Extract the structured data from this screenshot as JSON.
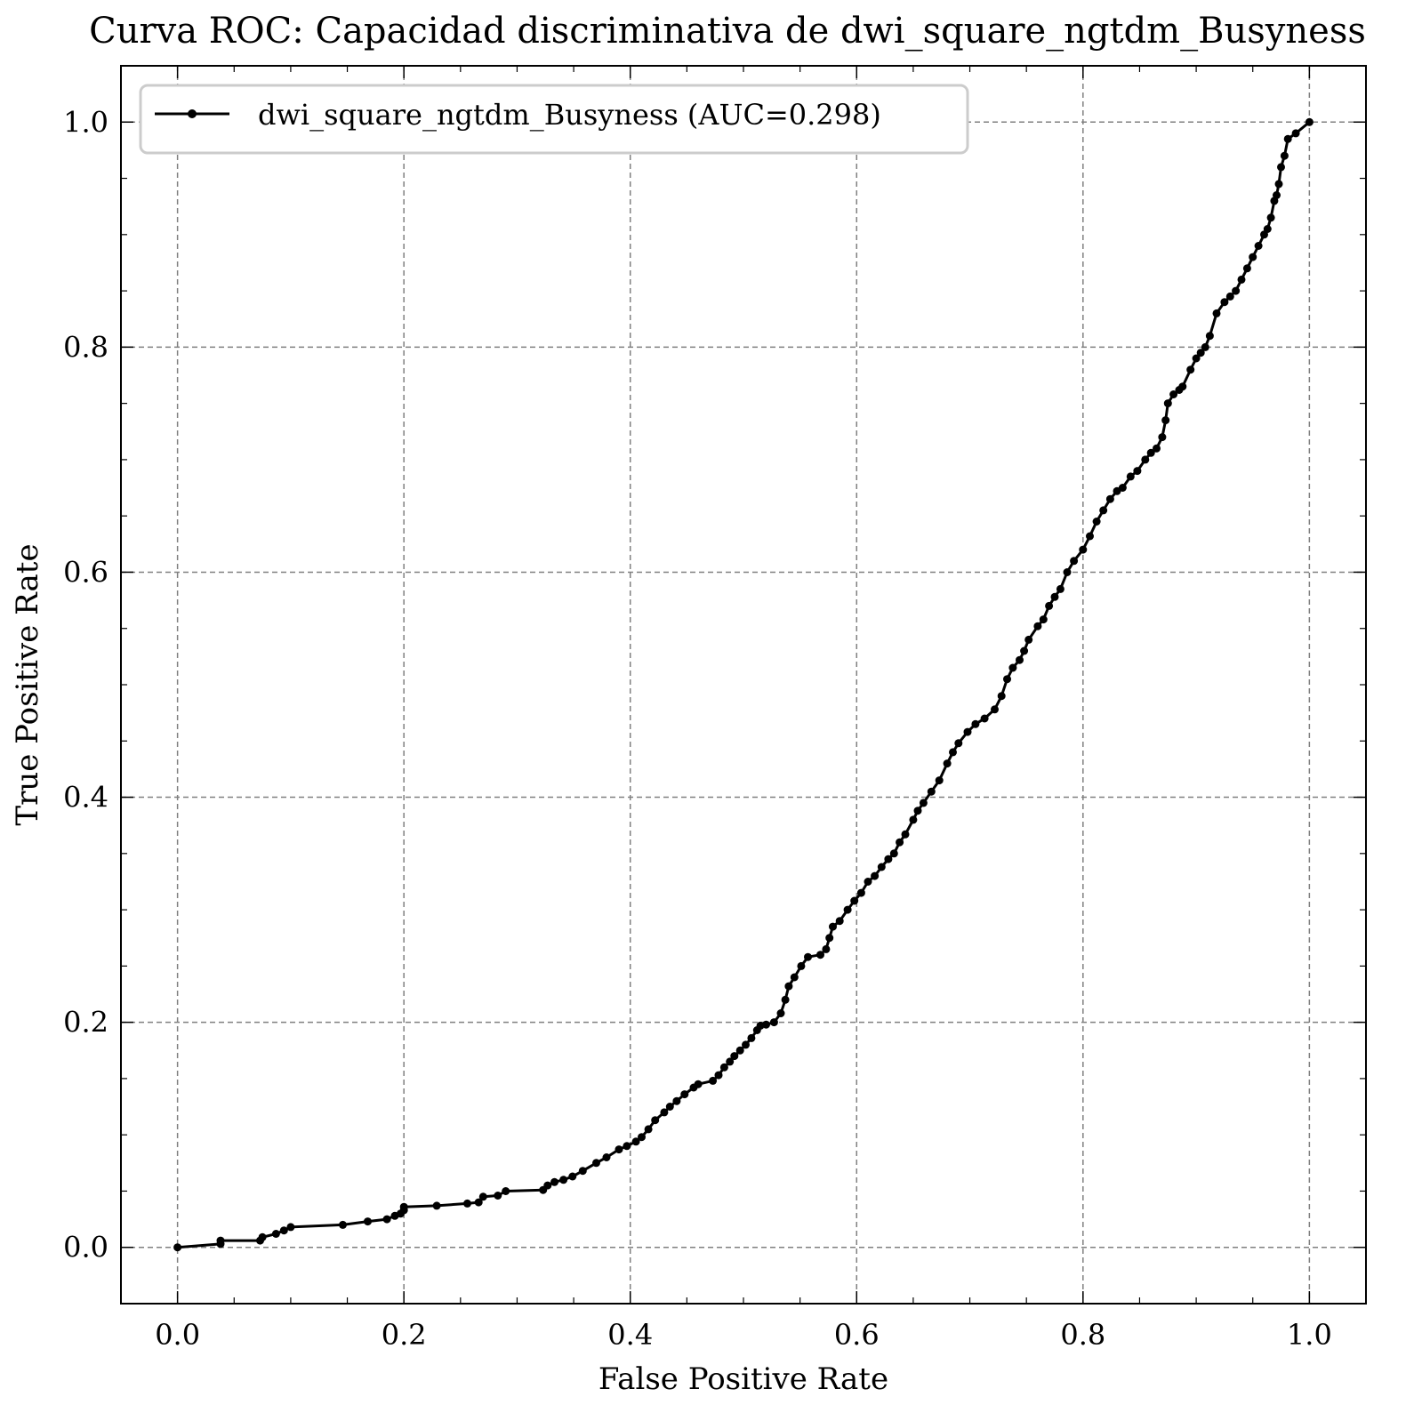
{
  "chart_data": {
    "type": "line",
    "title": "Curva ROC: Capacidad discriminativa de dwi_square_ngtdm_Busyness",
    "xlabel": "False Positive Rate",
    "ylabel": "True Positive Rate",
    "xlim": [
      -0.05,
      1.05
    ],
    "ylim": [
      -0.05,
      1.05
    ],
    "xticks": [
      "0.0",
      "0.2",
      "0.4",
      "0.6",
      "0.8",
      "1.0"
    ],
    "yticks": [
      "0.0",
      "0.2",
      "0.4",
      "0.6",
      "0.8",
      "1.0"
    ],
    "grid": true,
    "legend_position": "top-left",
    "colors": {
      "line": "#000000",
      "grid": "#808080",
      "background": "#ffffff"
    },
    "series": [
      {
        "name": "dwi_square_ngtdm_Busyness (AUC=0.298)",
        "x": [
          0.0,
          0.038,
          0.038,
          0.073,
          0.075,
          0.087,
          0.094,
          0.1,
          0.146,
          0.168,
          0.185,
          0.192,
          0.197,
          0.2,
          0.2,
          0.229,
          0.256,
          0.266,
          0.27,
          0.283,
          0.29,
          0.323,
          0.327,
          0.333,
          0.341,
          0.349,
          0.358,
          0.37,
          0.379,
          0.39,
          0.397,
          0.405,
          0.41,
          0.416,
          0.422,
          0.43,
          0.435,
          0.441,
          0.448,
          0.456,
          0.46,
          0.473,
          0.478,
          0.483,
          0.488,
          0.492,
          0.497,
          0.502,
          0.507,
          0.512,
          0.515,
          0.52,
          0.527,
          0.533,
          0.537,
          0.54,
          0.545,
          0.551,
          0.557,
          0.568,
          0.573,
          0.576,
          0.579,
          0.585,
          0.592,
          0.598,
          0.604,
          0.61,
          0.616,
          0.622,
          0.628,
          0.633,
          0.638,
          0.643,
          0.65,
          0.654,
          0.659,
          0.666,
          0.673,
          0.68,
          0.685,
          0.69,
          0.698,
          0.705,
          0.713,
          0.722,
          0.728,
          0.733,
          0.738,
          0.744,
          0.748,
          0.752,
          0.76,
          0.765,
          0.77,
          0.775,
          0.78,
          0.786,
          0.792,
          0.8,
          0.806,
          0.812,
          0.818,
          0.824,
          0.83,
          0.835,
          0.842,
          0.848,
          0.855,
          0.86,
          0.865,
          0.87,
          0.873,
          0.875,
          0.88,
          0.885,
          0.888,
          0.895,
          0.9,
          0.904,
          0.908,
          0.912,
          0.918,
          0.925,
          0.93,
          0.935,
          0.94,
          0.945,
          0.95,
          0.955,
          0.96,
          0.963,
          0.966,
          0.969,
          0.971,
          0.973,
          0.975,
          0.978,
          0.981,
          0.988,
          1.0
        ],
        "y": [
          0.0,
          0.003,
          0.006,
          0.006,
          0.009,
          0.012,
          0.015,
          0.018,
          0.02,
          0.023,
          0.025,
          0.028,
          0.03,
          0.033,
          0.036,
          0.037,
          0.039,
          0.04,
          0.045,
          0.046,
          0.05,
          0.051,
          0.055,
          0.058,
          0.06,
          0.063,
          0.068,
          0.075,
          0.08,
          0.087,
          0.09,
          0.094,
          0.098,
          0.105,
          0.113,
          0.12,
          0.125,
          0.13,
          0.136,
          0.142,
          0.145,
          0.148,
          0.153,
          0.16,
          0.165,
          0.17,
          0.175,
          0.18,
          0.186,
          0.193,
          0.197,
          0.198,
          0.2,
          0.208,
          0.22,
          0.232,
          0.24,
          0.25,
          0.258,
          0.26,
          0.265,
          0.275,
          0.285,
          0.29,
          0.3,
          0.308,
          0.315,
          0.325,
          0.33,
          0.338,
          0.345,
          0.35,
          0.36,
          0.367,
          0.38,
          0.388,
          0.395,
          0.405,
          0.415,
          0.43,
          0.44,
          0.448,
          0.458,
          0.465,
          0.47,
          0.478,
          0.49,
          0.505,
          0.515,
          0.522,
          0.53,
          0.54,
          0.552,
          0.558,
          0.57,
          0.578,
          0.585,
          0.6,
          0.61,
          0.62,
          0.632,
          0.645,
          0.655,
          0.665,
          0.672,
          0.675,
          0.685,
          0.69,
          0.7,
          0.706,
          0.71,
          0.72,
          0.735,
          0.75,
          0.758,
          0.762,
          0.765,
          0.78,
          0.79,
          0.795,
          0.8,
          0.81,
          0.83,
          0.84,
          0.845,
          0.85,
          0.86,
          0.87,
          0.88,
          0.89,
          0.9,
          0.905,
          0.915,
          0.93,
          0.935,
          0.945,
          0.96,
          0.97,
          0.985,
          0.99,
          1.0
        ]
      }
    ]
  }
}
